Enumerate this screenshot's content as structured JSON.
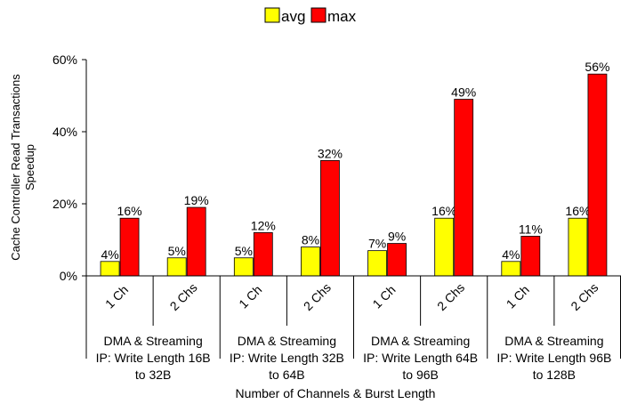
{
  "chart_data": {
    "type": "bar",
    "title": "",
    "xlabel": "Number of Channels & Burst Length",
    "ylabel_lines": [
      "Cache Controller Read Transactions",
      "Speedup"
    ],
    "ylim": [
      0,
      60
    ],
    "y_ticks": [
      "0%",
      "20%",
      "40%",
      "60%"
    ],
    "y_tick_values": [
      0,
      20,
      40,
      60
    ],
    "legend_position": "top-center",
    "categories": [
      "1 Ch",
      "2 Chs",
      "1 Ch",
      "2 Chs",
      "1 Ch",
      "2 Chs",
      "1 Ch",
      "2 Chs"
    ],
    "groups": [
      [
        "DMA & Streaming",
        "IP: Write Length 16B",
        "to 32B"
      ],
      [
        "DMA & Streaming",
        "IP: Write Length 32B",
        "to 64B"
      ],
      [
        "DMA & Streaming",
        "IP: Write Length 64B",
        "to 96B"
      ],
      [
        "DMA & Streaming",
        "IP: Write Length 96B",
        "to 128B"
      ]
    ],
    "series": [
      {
        "name": "avg",
        "color": "#ffff00",
        "values": [
          4,
          5,
          5,
          8,
          7,
          16,
          4,
          16
        ],
        "labels": [
          "4%",
          "5%",
          "5%",
          "8%",
          "7%",
          "16%",
          "4%",
          "16%"
        ]
      },
      {
        "name": "max",
        "color": "#ff0000",
        "values": [
          16,
          19,
          12,
          32,
          9,
          49,
          11,
          56
        ],
        "labels": [
          "16%",
          "19%",
          "12%",
          "32%",
          "9%",
          "49%",
          "11%",
          "56%"
        ]
      }
    ]
  }
}
